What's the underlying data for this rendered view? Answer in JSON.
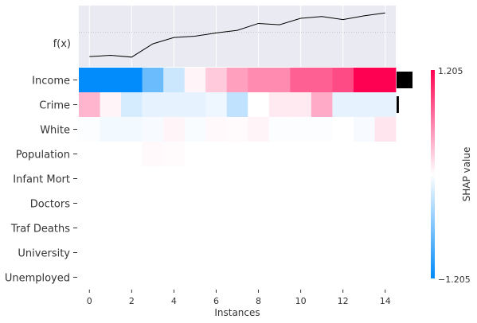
{
  "colors": {
    "positive": "#ff0052",
    "negative": "#008bfb",
    "panel_bg": "#eaeaf2",
    "grid": "#ffffff",
    "fx_line": "#000000",
    "importance_bar": "#000000"
  },
  "chart_data": {
    "type": "heatmap",
    "xlabel": "Instances",
    "fx_label": "f(x)",
    "colorbar": {
      "label": "SHAP value",
      "max_label": "1.205",
      "min_label": "−1.205",
      "vmin": -1.205,
      "vmax": 1.205
    },
    "xlim": [
      -0.5,
      14.5
    ],
    "xticks": [
      0,
      2,
      4,
      6,
      8,
      10,
      12,
      14
    ],
    "features": [
      "Income",
      "Crime",
      "White",
      "Population",
      "Infant Mort",
      "Doctors",
      "Traf Deaths",
      "University",
      "Unemployed"
    ],
    "importance": [
      0.55,
      0.08,
      0,
      0,
      0,
      0,
      0,
      0,
      0
    ],
    "fx_values": [
      0.05,
      0.1,
      0.03,
      0.55,
      0.8,
      0.85,
      0.98,
      1.08,
      1.35,
      1.3,
      1.55,
      1.62,
      1.5,
      1.65,
      1.76
    ],
    "fx_ylim": [
      -0.35,
      2.05
    ],
    "shap_values": [
      [
        -1.2,
        -1.2,
        -1.2,
        -0.7,
        -0.25,
        0.05,
        0.25,
        0.45,
        0.55,
        0.55,
        0.75,
        0.75,
        0.85,
        1.2,
        1.2
      ],
      [
        0.35,
        0.05,
        -0.2,
        -0.12,
        -0.12,
        -0.12,
        -0.08,
        -0.3,
        0.0,
        0.1,
        0.1,
        0.4,
        -0.12,
        -0.12,
        -0.12
      ],
      [
        -0.02,
        -0.06,
        -0.06,
        -0.04,
        0.05,
        -0.03,
        0.03,
        0.02,
        0.05,
        -0.02,
        -0.02,
        -0.02,
        0.0,
        -0.04,
        0.12
      ],
      [
        0,
        0,
        0,
        0.03,
        0.02,
        0,
        0,
        0,
        0,
        0,
        0,
        0,
        0,
        0,
        0
      ],
      [
        0,
        0,
        0,
        0,
        0,
        0,
        0,
        0,
        0,
        0,
        0,
        0,
        0,
        0,
        0
      ],
      [
        0,
        0,
        0,
        0,
        0,
        0,
        0,
        0,
        0,
        0,
        0,
        0,
        0,
        0,
        0
      ],
      [
        0,
        0,
        0,
        0,
        0,
        0,
        0,
        0,
        0,
        0,
        0,
        0,
        0,
        0,
        0
      ],
      [
        0,
        0,
        0,
        0,
        0,
        0,
        0,
        0,
        0,
        0,
        0,
        0,
        0,
        0,
        0
      ],
      [
        0,
        0,
        0,
        0,
        0,
        0,
        0,
        0,
        0,
        0,
        0,
        0,
        0,
        0,
        0
      ]
    ]
  }
}
